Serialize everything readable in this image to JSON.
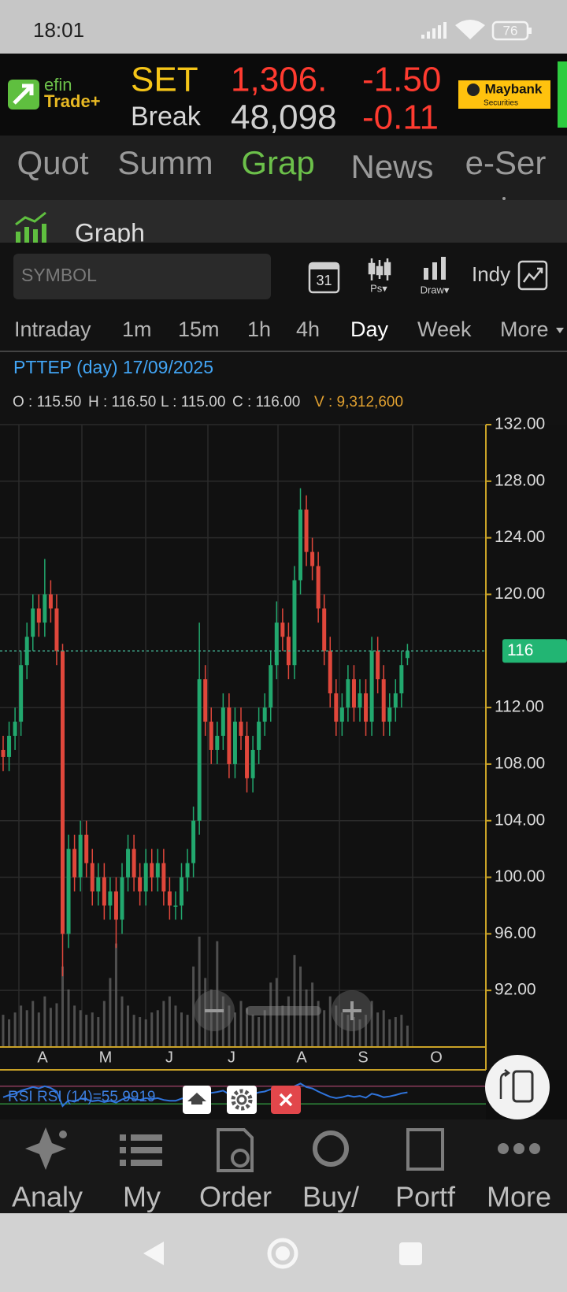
{
  "status_bar": {
    "time": "18:01",
    "battery": "76"
  },
  "header": {
    "logo_top": "efin",
    "logo_bottom": "Trade+",
    "index": "SET",
    "index_value": "1,306.",
    "index_change": "-1.50",
    "sub_label": "Break",
    "sub_value": "48,098",
    "sub_change": "-0.11",
    "broker": "Maybank",
    "broker_sub": "Securities"
  },
  "tabs": [
    {
      "label": "Quot",
      "active": false
    },
    {
      "label": "Summ",
      "active": false
    },
    {
      "label": "Grap",
      "active": true
    },
    {
      "label": "News",
      "active": false
    },
    {
      "label": "e-Ser",
      "active": false
    }
  ],
  "section_title": "Graph",
  "toolbar": {
    "symbol_placeholder": "SYMBOL",
    "calendar": "31",
    "ps": "Ps▾",
    "draw": "Draw▾",
    "indy": "Indy"
  },
  "timeframes": [
    {
      "label": "Intraday",
      "active": false
    },
    {
      "label": "1m",
      "active": false
    },
    {
      "label": "15m",
      "active": false
    },
    {
      "label": "1h",
      "active": false
    },
    {
      "label": "4h",
      "active": false
    },
    {
      "label": "Day",
      "active": true
    },
    {
      "label": "Week",
      "active": false
    },
    {
      "label": "More",
      "active": false
    }
  ],
  "chart_data": {
    "type": "candlestick",
    "title": "PTTEP (day) 17/09/2025",
    "info": [
      "O : 115.50",
      "H : 116.50",
      "L : 115.00",
      "C : 116.00"
    ],
    "volume_info": "V : 9,312,600",
    "open": [
      109,
      108.5,
      110,
      111,
      115,
      117,
      119,
      118,
      120,
      119,
      116,
      96,
      102,
      100,
      103,
      101,
      99,
      100,
      98,
      99,
      97,
      100,
      102,
      100,
      99,
      101,
      100,
      101,
      99,
      98,
      98,
      100,
      101,
      104,
      114,
      111,
      109,
      110,
      112,
      108,
      111,
      110,
      107,
      109,
      111,
      112,
      115,
      118,
      117,
      115,
      121,
      126,
      123,
      122,
      119,
      116,
      113,
      111,
      112,
      114,
      112,
      113,
      111,
      116,
      114,
      111,
      112,
      113,
      115.5
    ],
    "high": [
      110,
      111,
      112,
      116,
      118,
      120,
      120,
      122.5,
      121,
      120,
      116.5,
      103,
      103,
      104,
      104,
      102,
      101,
      101,
      100,
      100,
      101,
      103,
      103,
      101,
      102,
      102,
      102,
      102,
      100,
      99,
      101,
      102,
      105,
      118,
      115,
      112,
      111,
      113,
      113,
      112,
      112,
      111,
      110,
      112,
      113,
      116,
      119.5,
      119,
      118,
      122,
      127.5,
      127,
      124,
      123,
      120,
      117,
      114,
      113,
      115,
      115,
      114,
      114,
      117,
      117,
      115,
      113,
      114,
      116,
      116.5
    ],
    "low": [
      107.5,
      107.5,
      109,
      110,
      114,
      116,
      117,
      117,
      118,
      115,
      93,
      95,
      99,
      99,
      100,
      98,
      98,
      97,
      97,
      95,
      96,
      99,
      99,
      98,
      98,
      99,
      99,
      98,
      97,
      97,
      97,
      99,
      100,
      103,
      110,
      108,
      108,
      109,
      107,
      107,
      109,
      106,
      106,
      108,
      110,
      111,
      114,
      116,
      114,
      114,
      120,
      122,
      121,
      118,
      115,
      112,
      110,
      110,
      111,
      111,
      111,
      110,
      110,
      113,
      110,
      110,
      111,
      112,
      115
    ],
    "close": [
      108.5,
      110,
      111,
      115,
      117,
      119,
      118,
      120,
      119,
      116,
      96,
      102,
      100,
      103,
      101,
      99,
      100,
      98,
      99,
      97,
      100,
      102,
      100,
      99,
      101,
      100,
      101,
      99,
      98,
      98,
      100,
      101,
      104,
      114,
      111,
      109,
      110,
      112,
      108,
      111,
      110,
      107,
      109,
      111,
      112,
      115,
      118,
      117,
      115,
      121,
      126,
      123,
      122,
      119,
      116,
      113,
      111,
      112,
      114,
      112,
      113,
      111,
      116,
      114,
      111,
      112,
      113,
      115,
      116
    ],
    "volume": [
      14000000,
      12000000,
      15000000,
      18000000,
      16000000,
      20000000,
      15000000,
      22000000,
      17000000,
      19000000,
      35000000,
      25000000,
      18000000,
      16000000,
      14000000,
      15000000,
      13000000,
      20000000,
      30000000,
      45000000,
      22000000,
      18000000,
      14000000,
      13000000,
      12000000,
      15000000,
      16000000,
      20000000,
      22000000,
      18000000,
      15000000,
      14000000,
      35000000,
      48000000,
      30000000,
      25000000,
      46000000,
      22000000,
      18000000,
      15000000,
      20000000,
      17000000,
      14000000,
      13000000,
      16000000,
      28000000,
      30000000,
      18000000,
      22000000,
      40000000,
      35000000,
      25000000,
      28000000,
      20000000,
      16000000,
      22000000,
      18000000,
      15000000,
      14000000,
      13000000,
      12000000,
      14000000,
      20000000,
      15000000,
      16000000,
      12000000,
      13000000,
      14000000,
      9312600
    ],
    "volume_lim": [
      0,
      50000000
    ],
    "ylim": [
      88,
      132
    ],
    "yticks": [
      {
        "value": 92,
        "label": "92.00"
      },
      {
        "value": 96,
        "label": "96.00"
      },
      {
        "value": 100,
        "label": "100.00"
      },
      {
        "value": 104,
        "label": "104.00"
      },
      {
        "value": 108,
        "label": "108.00"
      },
      {
        "value": 112,
        "label": "112.00"
      },
      {
        "value": 120,
        "label": "120.00"
      },
      {
        "value": 124,
        "label": "124.00"
      },
      {
        "value": 128,
        "label": "128.00"
      },
      {
        "value": 132,
        "label": "132.00"
      }
    ],
    "grid": true,
    "last_price": 116,
    "months": [
      "A",
      "M",
      "J",
      "J",
      "A",
      "S",
      "O"
    ],
    "up_color": "#22a86e",
    "down_color": "#e0473b",
    "rsi": {
      "label": "RSI RSI (14)=",
      "color": "#2f74dc",
      "ylim": [
        0,
        100
      ],
      "levels": [
        30,
        70
      ],
      "values": [
        45,
        50,
        53,
        60,
        64,
        68,
        65,
        70,
        66,
        58,
        25,
        38,
        35,
        42,
        40,
        36,
        38,
        34,
        37,
        33,
        40,
        45,
        41,
        39,
        43,
        41,
        43,
        39,
        37,
        37,
        42,
        44,
        50,
        68,
        60,
        55,
        57,
        60,
        52,
        57,
        55,
        49,
        52,
        56,
        58,
        63,
        68,
        65,
        60,
        70,
        76,
        68,
        65,
        58,
        52,
        46,
        43,
        45,
        49,
        46,
        48,
        44,
        53,
        50,
        45,
        47,
        50,
        54,
        55.9919
      ]
    }
  },
  "nav": [
    "Analy",
    "My",
    "Order",
    "Buy/",
    "Portf",
    "More"
  ]
}
